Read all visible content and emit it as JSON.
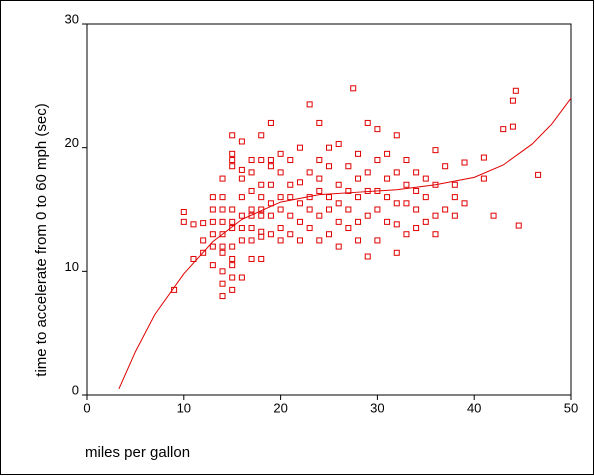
{
  "chart_data": {
    "type": "scatter",
    "x_label": "miles per gallon",
    "y_label": "time to accelerate from 0 to 60 mph (sec)",
    "xlim": [
      0,
      50
    ],
    "xticks": [
      0,
      10,
      20,
      30,
      40,
      50
    ],
    "ylim": [
      0,
      30
    ],
    "yticks": [
      0,
      10,
      20,
      30
    ],
    "series": [
      {
        "type": "scatter",
        "color": "#e00000",
        "x": [
          9,
          10,
          10,
          11,
          11,
          12,
          12,
          12,
          13,
          13,
          13,
          13,
          13,
          13,
          14,
          14,
          14,
          14,
          14,
          14,
          14,
          14,
          14,
          14,
          15,
          15,
          15,
          15,
          15,
          15,
          15,
          15,
          15,
          15,
          15,
          15,
          16,
          16,
          16,
          16,
          16,
          16,
          16,
          16,
          17,
          17,
          17,
          17,
          17,
          17,
          17,
          17,
          18,
          18,
          18,
          18,
          18,
          18,
          18,
          18,
          18,
          19,
          19,
          19,
          19,
          19,
          19,
          19,
          20,
          20,
          20,
          20,
          20,
          20,
          21,
          21,
          21,
          21,
          21,
          22,
          22,
          22,
          22,
          22,
          23,
          23,
          23,
          23,
          23,
          24,
          24,
          24,
          24,
          24,
          24,
          25,
          25,
          25,
          25,
          25,
          26,
          26,
          26,
          26,
          26,
          27,
          27,
          27,
          27,
          27.5,
          28,
          28,
          28,
          28,
          28,
          29,
          29,
          29,
          29,
          29,
          30,
          30,
          30,
          30,
          30,
          31,
          31,
          31,
          31,
          32,
          32,
          32,
          32,
          32,
          33,
          33,
          33,
          33,
          34,
          34,
          34,
          34,
          35,
          35,
          35,
          36,
          36,
          36,
          36,
          37,
          37,
          38,
          38,
          38,
          39,
          39,
          41,
          41,
          42,
          43,
          44,
          44,
          44.3,
          44.6,
          46.6
        ],
        "values": [
          8.5,
          14.8,
          14,
          11,
          13.8,
          11.5,
          12.5,
          13.9,
          12,
          13,
          14,
          15,
          16,
          10.5,
          8,
          9,
          10,
          11.5,
          12,
          13,
          14,
          15,
          16,
          17.5,
          8.5,
          9.5,
          10.5,
          11,
          12,
          13.5,
          14,
          15,
          19,
          19.5,
          21,
          18.5,
          9.5,
          12.5,
          13.5,
          14.5,
          16,
          17.5,
          18.2,
          20.5,
          11,
          12.5,
          13.5,
          14.5,
          15,
          16.5,
          18,
          19,
          11,
          12.8,
          13.2,
          14.5,
          15,
          16,
          17,
          19,
          21,
          13,
          14.5,
          15.5,
          17,
          18.5,
          22,
          19,
          12.5,
          13.5,
          15,
          16,
          18,
          19.5,
          13,
          14.5,
          16,
          17,
          19,
          12.5,
          14,
          15.5,
          17.2,
          20,
          13.5,
          15,
          16,
          18,
          23.5,
          12.5,
          14.5,
          16.5,
          17.5,
          19,
          22,
          13,
          15,
          16,
          18.5,
          20,
          12,
          14,
          15.5,
          17,
          20.3,
          13.5,
          15,
          16.5,
          18.5,
          24.8,
          12.5,
          14,
          16,
          17.5,
          19.5,
          11.2,
          14.5,
          16.5,
          18,
          22,
          12.5,
          15,
          16.5,
          19,
          21.5,
          14,
          16,
          17.5,
          19.5,
          11.5,
          13.8,
          15.5,
          18,
          21,
          13,
          15.5,
          17,
          19,
          13.5,
          15,
          16.5,
          18,
          14,
          16,
          17.5,
          13,
          14.5,
          17,
          19.8,
          15,
          18.5,
          14.5,
          16,
          17,
          15.5,
          18.8,
          17.5,
          19.2,
          14.5,
          21.5,
          21.7,
          23.8,
          24.6,
          13.7,
          17.8
        ]
      },
      {
        "type": "line",
        "color": "#e00000",
        "x": [
          3.3,
          5,
          7,
          10,
          13,
          16,
          20,
          24,
          28,
          32,
          36,
          40,
          43,
          46,
          48,
          50
        ],
        "values": [
          0.5,
          3.5,
          6.5,
          9.8,
          12.4,
          14.2,
          15.6,
          16.2,
          16.4,
          16.6,
          17,
          17.6,
          18.6,
          20.3,
          21.9,
          24
        ]
      }
    ]
  }
}
